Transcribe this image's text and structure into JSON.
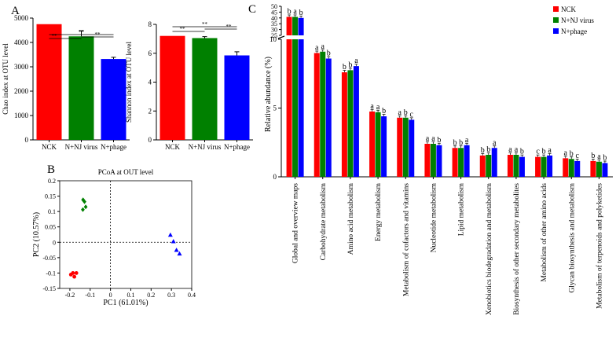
{
  "panels": {
    "A": "A",
    "B": "B",
    "C": "C"
  },
  "colors": {
    "NCK": "#ff0000",
    "NJ": "#008000",
    "phage": "#0000ff",
    "sig": "#ff0000"
  },
  "chart_data": [
    {
      "type": "bar",
      "id": "chao",
      "title": "",
      "xlabel": "",
      "ylabel": "Chao index at OTU level",
      "categories": [
        "NCK",
        "N+NJ virus",
        "N+phage"
      ],
      "values": [
        4750,
        4250,
        3320
      ],
      "errors": [
        0,
        230,
        70
      ],
      "ylim": [
        0,
        5000
      ],
      "yticks": [
        0,
        1000,
        2000,
        3000,
        4000,
        5000
      ],
      "significance_marks": [
        "**",
        "**",
        "**"
      ]
    },
    {
      "type": "bar",
      "id": "shannon",
      "title": "",
      "xlabel": "",
      "ylabel": "Shannon index at OTU level",
      "categories": [
        "NCK",
        "N+NJ virus",
        "N+phage"
      ],
      "values": [
        7.2,
        7.05,
        5.85
      ],
      "errors": [
        0,
        0.1,
        0.25
      ],
      "ylim": [
        0,
        8
      ],
      "yticks": [
        0,
        2,
        4,
        6,
        8
      ],
      "significance_marks": [
        "**",
        "**",
        "**"
      ]
    },
    {
      "type": "scatter",
      "id": "pcoa",
      "title": "PCoA at OUT level",
      "xlabel": "PC1 (61.01%)",
      "ylabel": "PC2 (10.57%)",
      "xlim": [
        -0.25,
        0.4
      ],
      "ylim": [
        -0.15,
        0.2
      ],
      "xticks": [
        "-0.2",
        "-0.1",
        "0",
        "0.1",
        "0.2",
        "0.3",
        "0.4"
      ],
      "yticks": [
        "-0.15",
        "-0.1",
        "-0.05",
        "0",
        "0.05",
        "0.1",
        "0.15",
        "0.2"
      ],
      "series": [
        {
          "name": "NCK",
          "marker": "circle",
          "x": [
            -0.195,
            -0.185,
            -0.178,
            -0.168
          ],
          "y": [
            -0.105,
            -0.1,
            -0.112,
            -0.1
          ]
        },
        {
          "name": "N+NJ virus",
          "marker": "diamond",
          "x": [
            -0.135,
            -0.128,
            -0.122,
            -0.136
          ],
          "y": [
            0.138,
            0.132,
            0.115,
            0.106
          ]
        },
        {
          "name": "N+phage",
          "marker": "triangle",
          "x": [
            0.295,
            0.31,
            0.325,
            0.34
          ],
          "y": [
            0.024,
            0.003,
            -0.025,
            -0.037
          ]
        }
      ]
    },
    {
      "type": "bar",
      "id": "kegg",
      "title": "",
      "xlabel": "",
      "ylabel": "Relative abundance (%)",
      "legend": [
        "NCK",
        "N+NJ virus",
        "N+phage"
      ],
      "ylim_lower": [
        0,
        10
      ],
      "yticks_lower": [
        0,
        5,
        10
      ],
      "ylim_upper": [
        25,
        50
      ],
      "yticks_upper": [
        25,
        30,
        35,
        40,
        45,
        50
      ],
      "categories": [
        "Global and overview maps",
        "Carbohydrate metabolism",
        "Amino acid metabolism",
        "Energy metabolism",
        "Metabolism of cofactors and vitamins",
        "Nucleotide metabolism",
        "Lipid metabolism",
        "Xenobiotics biodegradation and metabolism",
        "Biosynthesis of other secondary metabolites",
        "Metabolism of other amino acids",
        "Glycan biosynthesis and metabolism",
        "Metabolism of terpenoids and polyketides"
      ],
      "series": [
        {
          "name": "NCK",
          "values": [
            40.9,
            9.0,
            7.6,
            4.75,
            4.3,
            2.4,
            2.1,
            1.55,
            1.6,
            1.45,
            1.35,
            1.15
          ]
        },
        {
          "name": "N+NJ virus",
          "values": [
            40.9,
            9.1,
            7.75,
            4.7,
            4.3,
            2.4,
            2.1,
            1.6,
            1.6,
            1.45,
            1.3,
            1.1
          ]
        },
        {
          "name": "N+phage",
          "values": [
            40.0,
            8.6,
            8.05,
            4.4,
            4.15,
            2.3,
            2.3,
            2.1,
            1.45,
            1.55,
            1.15,
            1.0
          ]
        }
      ],
      "letters": [
        [
          "b",
          "a",
          "b"
        ],
        [
          "a",
          "a",
          "b"
        ],
        [
          "b",
          "b",
          "a"
        ],
        [
          "a",
          "a",
          "b"
        ],
        [
          "a",
          "b",
          "c"
        ],
        [
          "a",
          "a",
          "b"
        ],
        [
          "b",
          "b",
          "a"
        ],
        [
          "b",
          "b",
          "a"
        ],
        [
          "a",
          "a",
          "b"
        ],
        [
          "c",
          "b",
          "a"
        ],
        [
          "a",
          "b",
          "c"
        ],
        [
          "b",
          "a",
          "b"
        ]
      ]
    }
  ]
}
